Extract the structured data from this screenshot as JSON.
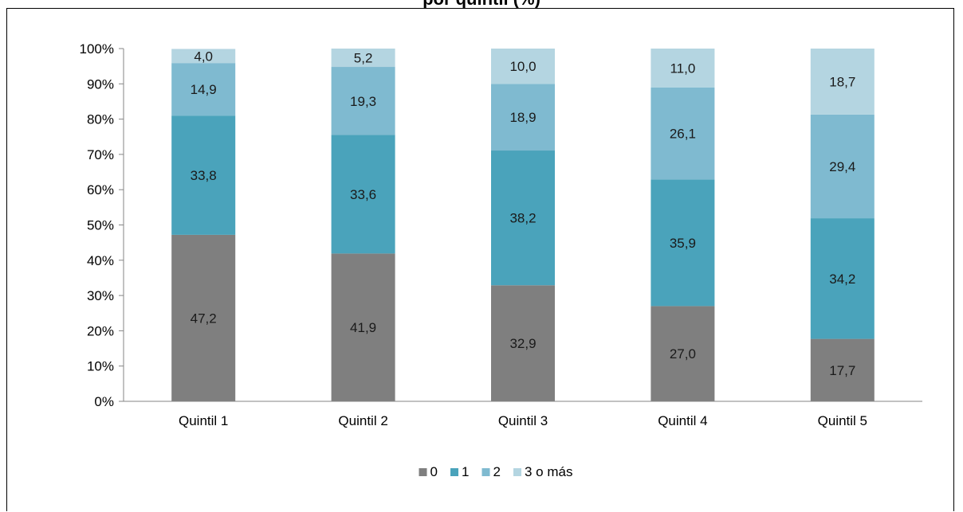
{
  "chart_data": {
    "type": "bar",
    "stacked": true,
    "title": "por quintil (%)",
    "categories": [
      "Quintil 1",
      "Quintil 2",
      "Quintil 3",
      "Quintil 4",
      "Quintil 5"
    ],
    "series": [
      {
        "name": "0",
        "color": "#7f7f7f",
        "values": [
          47.2,
          41.9,
          32.9,
          27.0,
          17.7
        ],
        "labels": [
          "47,2",
          "41,9",
          "32,9",
          "27,0",
          "17,7"
        ]
      },
      {
        "name": "1",
        "color": "#4aa3bb",
        "values": [
          33.8,
          33.6,
          38.2,
          35.9,
          34.2
        ],
        "labels": [
          "33,8",
          "33,6",
          "38,2",
          "35,9",
          "34,2"
        ]
      },
      {
        "name": "2",
        "color": "#7fbad0",
        "values": [
          14.9,
          19.3,
          18.9,
          26.1,
          29.4
        ],
        "labels": [
          "14,9",
          "19,3",
          "18,9",
          "26,1",
          "29,4"
        ]
      },
      {
        "name": "3 o más",
        "color": "#b4d5e1",
        "values": [
          4.0,
          5.2,
          10.0,
          11.0,
          18.7
        ],
        "labels": [
          "4,0",
          "5,2",
          "10,0",
          "11,0",
          "18,7"
        ]
      }
    ],
    "yticks": [
      "0%",
      "10%",
      "20%",
      "30%",
      "40%",
      "50%",
      "60%",
      "70%",
      "80%",
      "90%",
      "100%"
    ],
    "ylim": [
      0,
      100
    ],
    "xlabel": "",
    "ylabel": "",
    "grid": false,
    "legend_position": "bottom"
  }
}
